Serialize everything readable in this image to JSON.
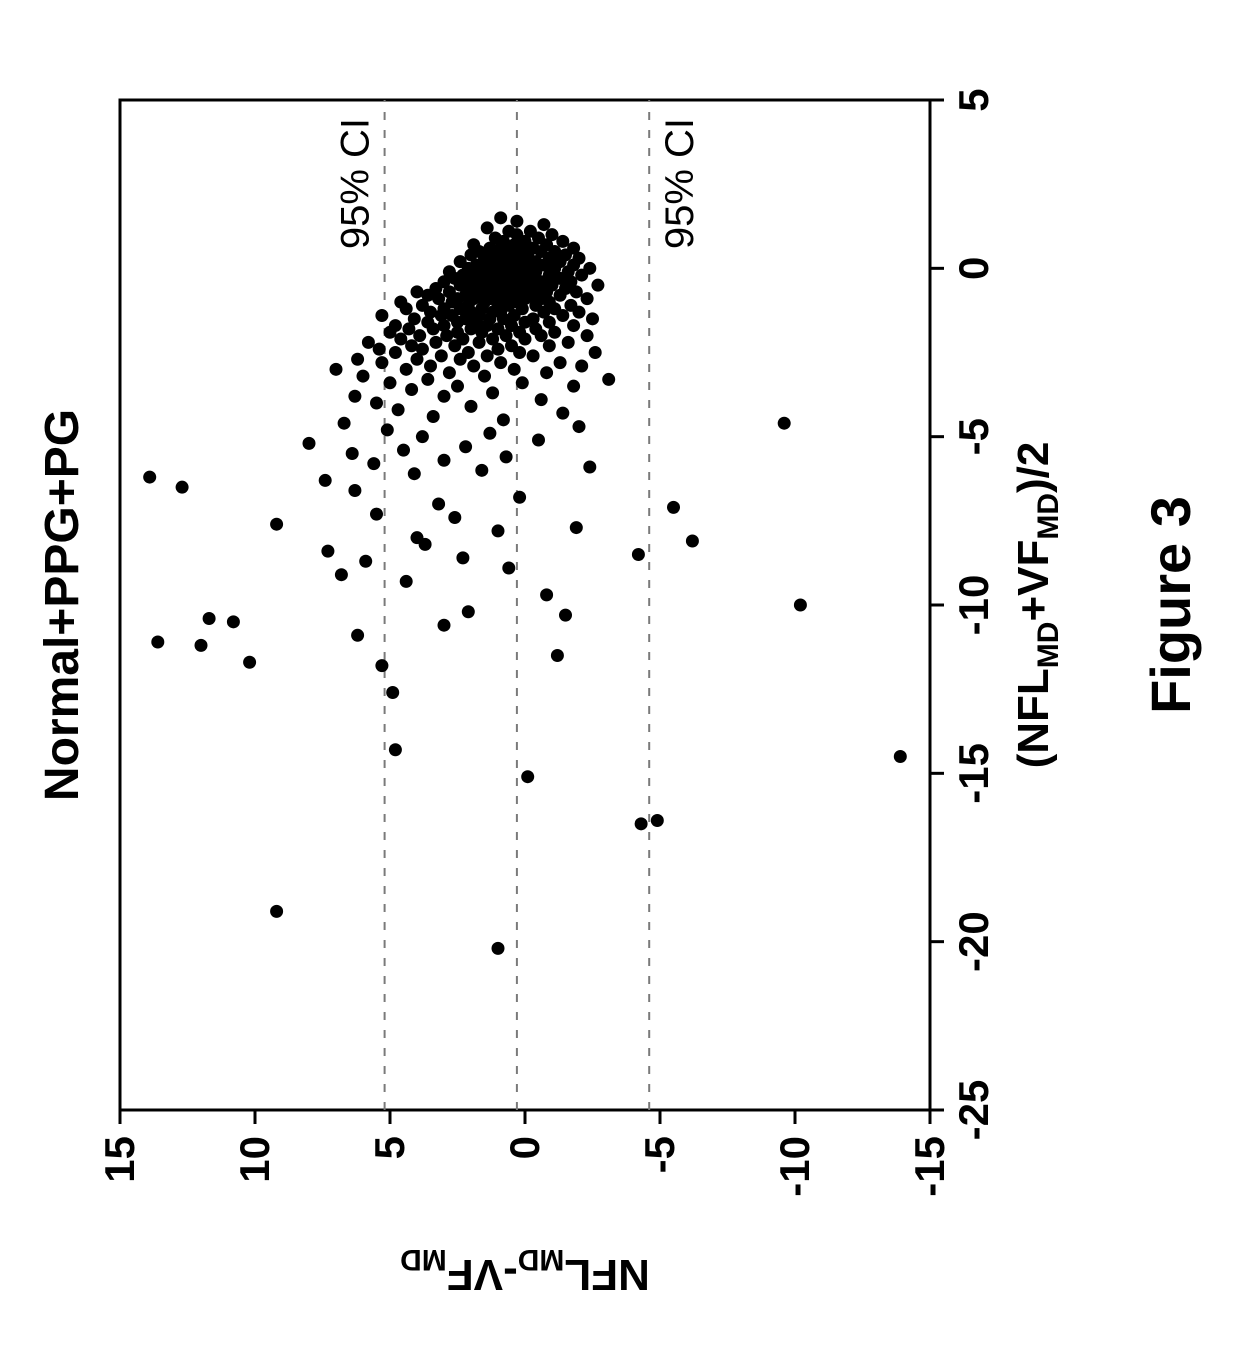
{
  "figure": {
    "caption": "Figure 3",
    "caption_fontsize": 56
  },
  "chart": {
    "type": "scatter",
    "title": "Normal+PPG+PG",
    "title_fontsize": 48,
    "background_color": "#ffffff",
    "axis_color": "#000000",
    "axis_line_width": 3,
    "tick_color": "#000000",
    "tick_len": 14,
    "tick_fontsize": 42,
    "tick_fontweight": "bold",
    "x": {
      "label_main": "(NFL",
      "label_sub1": "MD",
      "label_mid": "+VF",
      "label_sub2": "MD",
      "label_tail": ")/2",
      "min": -25,
      "max": 5,
      "ticks": [
        -25,
        -20,
        -15,
        -10,
        -5,
        0,
        5
      ]
    },
    "y": {
      "label_main": "NFL",
      "label_sub1": "MD",
      "label_mid": "-VF",
      "label_sub2": "MD",
      "min": -15,
      "max": 15,
      "ticks": [
        -15,
        -10,
        -5,
        0,
        5,
        10,
        15
      ]
    },
    "ref_lines": {
      "color": "#7a7a7a",
      "width": 2,
      "dash": "8 10",
      "mean": 0.3,
      "upper": 5.2,
      "lower": -4.6,
      "label_upper": "95% CI",
      "label_lower": "95% CI"
    },
    "marker": {
      "radius": 6.5,
      "fill": "#000000",
      "opacity": 1
    },
    "points": [
      [
        -19.1,
        9.2
      ],
      [
        -20.2,
        1.0
      ],
      [
        -16.5,
        -4.3
      ],
      [
        -16.4,
        -4.9
      ],
      [
        -15.1,
        -0.1
      ],
      [
        -14.5,
        -13.9
      ],
      [
        -14.3,
        4.8
      ],
      [
        -12.6,
        4.9
      ],
      [
        -11.8,
        5.3
      ],
      [
        -11.7,
        10.2
      ],
      [
        -11.5,
        -1.2
      ],
      [
        -11.2,
        12.0
      ],
      [
        -11.1,
        13.6
      ],
      [
        -10.9,
        6.2
      ],
      [
        -10.6,
        3.0
      ],
      [
        -10.5,
        10.8
      ],
      [
        -10.4,
        11.7
      ],
      [
        -10.3,
        -1.5
      ],
      [
        -10.2,
        2.1
      ],
      [
        -10.0,
        -10.2
      ],
      [
        -9.7,
        -0.8
      ],
      [
        -9.3,
        4.4
      ],
      [
        -9.1,
        6.8
      ],
      [
        -8.9,
        0.6
      ],
      [
        -8.7,
        5.9
      ],
      [
        -8.6,
        2.3
      ],
      [
        -8.5,
        -4.2
      ],
      [
        -8.4,
        7.3
      ],
      [
        -8.2,
        3.7
      ],
      [
        -8.1,
        -6.2
      ],
      [
        -8.0,
        4.0
      ],
      [
        -7.8,
        1.0
      ],
      [
        -7.7,
        -1.9
      ],
      [
        -7.6,
        9.2
      ],
      [
        -7.4,
        2.6
      ],
      [
        -7.3,
        5.5
      ],
      [
        -7.1,
        -5.5
      ],
      [
        -7.0,
        3.2
      ],
      [
        -6.8,
        0.2
      ],
      [
        -6.6,
        6.3
      ],
      [
        -6.5,
        12.7
      ],
      [
        -6.3,
        7.4
      ],
      [
        -6.2,
        13.9
      ],
      [
        -6.1,
        4.1
      ],
      [
        -6.0,
        1.6
      ],
      [
        -5.9,
        -2.4
      ],
      [
        -5.8,
        5.6
      ],
      [
        -5.7,
        3.0
      ],
      [
        -5.6,
        0.7
      ],
      [
        -5.5,
        6.4
      ],
      [
        -5.4,
        4.5
      ],
      [
        -5.3,
        2.2
      ],
      [
        -5.2,
        8.0
      ],
      [
        -5.1,
        -0.5
      ],
      [
        -5.0,
        3.8
      ],
      [
        -4.9,
        1.3
      ],
      [
        -4.8,
        5.1
      ],
      [
        -4.7,
        -2.0
      ],
      [
        -4.6,
        6.7
      ],
      [
        -4.6,
        -9.6
      ],
      [
        -4.5,
        0.8
      ],
      [
        -4.4,
        3.4
      ],
      [
        -4.3,
        -1.4
      ],
      [
        -4.2,
        4.7
      ],
      [
        -4.1,
        2.0
      ],
      [
        -4.0,
        5.5
      ],
      [
        -3.9,
        -0.6
      ],
      [
        -3.8,
        3.0
      ],
      [
        -3.8,
        6.3
      ],
      [
        -3.7,
        1.2
      ],
      [
        -3.6,
        4.2
      ],
      [
        -3.5,
        -1.8
      ],
      [
        -3.5,
        2.5
      ],
      [
        -3.4,
        0.1
      ],
      [
        -3.4,
        5.0
      ],
      [
        -3.3,
        -3.1
      ],
      [
        -3.3,
        3.6
      ],
      [
        -3.2,
        1.5
      ],
      [
        -3.2,
        6.0
      ],
      [
        -3.1,
        -0.8
      ],
      [
        -3.1,
        2.8
      ],
      [
        -3.0,
        4.4
      ],
      [
        -3.0,
        0.4
      ],
      [
        -3.0,
        7.0
      ],
      [
        -2.9,
        -2.1
      ],
      [
        -2.9,
        1.9
      ],
      [
        -2.9,
        3.5
      ],
      [
        -2.8,
        5.3
      ],
      [
        -2.8,
        0.9
      ],
      [
        -2.8,
        -1.3
      ],
      [
        -2.7,
        2.4
      ],
      [
        -2.7,
        4.0
      ],
      [
        -2.7,
        6.2
      ],
      [
        -2.6,
        -0.3
      ],
      [
        -2.6,
        1.4
      ],
      [
        -2.6,
        3.1
      ],
      [
        -2.5,
        4.8
      ],
      [
        -2.5,
        0.2
      ],
      [
        -2.5,
        2.1
      ],
      [
        -2.5,
        -2.6
      ],
      [
        -2.4,
        3.8
      ],
      [
        -2.4,
        1.0
      ],
      [
        -2.4,
        5.4
      ],
      [
        -2.3,
        -0.9
      ],
      [
        -2.3,
        2.6
      ],
      [
        -2.3,
        0.5
      ],
      [
        -2.3,
        4.2
      ],
      [
        -2.2,
        1.7
      ],
      [
        -2.2,
        3.3
      ],
      [
        -2.2,
        -1.6
      ],
      [
        -2.2,
        5.8
      ],
      [
        -2.1,
        0.0
      ],
      [
        -2.1,
        2.3
      ],
      [
        -2.1,
        4.6
      ],
      [
        -2.1,
        1.2
      ],
      [
        -2.0,
        -0.6
      ],
      [
        -2.0,
        2.9
      ],
      [
        -2.0,
        0.7
      ],
      [
        -2.0,
        3.9
      ],
      [
        -2.0,
        -2.3
      ],
      [
        -1.9,
        1.6
      ],
      [
        -1.9,
        5.0
      ],
      [
        -1.9,
        0.2
      ],
      [
        -1.9,
        2.5
      ],
      [
        -1.9,
        -1.1
      ],
      [
        -1.8,
        3.4
      ],
      [
        -1.8,
        1.0
      ],
      [
        -1.8,
        4.3
      ],
      [
        -1.8,
        -0.4
      ],
      [
        -1.8,
        2.0
      ],
      [
        -1.7,
        0.5
      ],
      [
        -1.7,
        3.0
      ],
      [
        -1.7,
        -1.8
      ],
      [
        -1.7,
        1.4
      ],
      [
        -1.7,
        4.8
      ],
      [
        -1.6,
        2.5
      ],
      [
        -1.6,
        0.0
      ],
      [
        -1.6,
        -0.9
      ],
      [
        -1.6,
        3.6
      ],
      [
        -1.6,
        1.8
      ],
      [
        -1.5,
        -2.5
      ],
      [
        -1.5,
        0.8
      ],
      [
        -1.5,
        2.2
      ],
      [
        -1.5,
        4.1
      ],
      [
        -1.5,
        -0.3
      ],
      [
        -1.5,
        1.3
      ],
      [
        -1.4,
        3.1
      ],
      [
        -1.4,
        0.4
      ],
      [
        -1.4,
        -1.4
      ],
      [
        -1.4,
        2.7
      ],
      [
        -1.4,
        1.7
      ],
      [
        -1.4,
        5.3
      ],
      [
        -1.3,
        -0.7
      ],
      [
        -1.3,
        0.9
      ],
      [
        -1.3,
        2.0
      ],
      [
        -1.3,
        3.5
      ],
      [
        -1.3,
        -2.0
      ],
      [
        -1.3,
        1.2
      ],
      [
        -1.2,
        0.1
      ],
      [
        -1.2,
        2.4
      ],
      [
        -1.2,
        4.4
      ],
      [
        -1.2,
        -1.1
      ],
      [
        -1.2,
        1.6
      ],
      [
        -1.2,
        3.0
      ],
      [
        -1.1,
        0.6
      ],
      [
        -1.1,
        -0.4
      ],
      [
        -1.1,
        2.1
      ],
      [
        -1.1,
        1.0
      ],
      [
        -1.1,
        3.8
      ],
      [
        -1.1,
        -1.7
      ],
      [
        -1.0,
        0.3
      ],
      [
        -1.0,
        1.5
      ],
      [
        -1.0,
        2.7
      ],
      [
        -1.0,
        -0.9
      ],
      [
        -1.0,
        4.6
      ],
      [
        -1.0,
        0.8
      ],
      [
        -0.9,
        -2.3
      ],
      [
        -0.9,
        1.9
      ],
      [
        -0.9,
        0.0
      ],
      [
        -0.9,
        3.2
      ],
      [
        -0.9,
        -0.6
      ],
      [
        -0.9,
        1.3
      ],
      [
        -0.9,
        2.5
      ],
      [
        -0.8,
        0.5
      ],
      [
        -0.8,
        -1.3
      ],
      [
        -0.8,
        1.7
      ],
      [
        -0.8,
        3.6
      ],
      [
        -0.8,
        -0.2
      ],
      [
        -0.8,
        2.2
      ],
      [
        -0.8,
        0.9
      ],
      [
        -0.7,
        -1.9
      ],
      [
        -0.7,
        1.1
      ],
      [
        -0.7,
        2.8
      ],
      [
        -0.7,
        0.2
      ],
      [
        -0.7,
        -0.8
      ],
      [
        -0.7,
        1.5
      ],
      [
        -0.7,
        4.0
      ],
      [
        -0.6,
        0.6
      ],
      [
        -0.6,
        2.0
      ],
      [
        -0.6,
        -1.5
      ],
      [
        -0.6,
        1.0
      ],
      [
        -0.6,
        3.3
      ],
      [
        -0.6,
        -0.4
      ],
      [
        -0.6,
        0.3
      ],
      [
        -0.5,
        1.8
      ],
      [
        -0.5,
        -2.7
      ],
      [
        -0.5,
        0.8
      ],
      [
        -0.5,
        2.4
      ],
      [
        -0.5,
        -1.0
      ],
      [
        -0.5,
        1.3
      ],
      [
        -0.5,
        -0.1
      ],
      [
        -0.4,
        0.5
      ],
      [
        -0.4,
        2.1
      ],
      [
        -0.4,
        -1.7
      ],
      [
        -0.4,
        1.6
      ],
      [
        -0.4,
        0.0
      ],
      [
        -0.4,
        3.0
      ],
      [
        -0.4,
        -0.6
      ],
      [
        -0.4,
        0.9
      ],
      [
        -0.3,
        1.2
      ],
      [
        -0.3,
        -1.3
      ],
      [
        -0.3,
        2.6
      ],
      [
        -0.3,
        0.3
      ],
      [
        -0.3,
        -0.3
      ],
      [
        -0.3,
        1.8
      ],
      [
        -0.3,
        0.7
      ],
      [
        -0.2,
        -2.1
      ],
      [
        -0.2,
        1.0
      ],
      [
        -0.2,
        0.1
      ],
      [
        -0.2,
        2.3
      ],
      [
        -0.2,
        -0.9
      ],
      [
        -0.2,
        1.5
      ],
      [
        -0.2,
        0.5
      ],
      [
        -0.1,
        -1.6
      ],
      [
        -0.1,
        0.8
      ],
      [
        -0.1,
        1.9
      ],
      [
        -0.1,
        -0.4
      ],
      [
        -0.1,
        0.2
      ],
      [
        -0.1,
        1.2
      ],
      [
        -0.1,
        2.8
      ],
      [
        0.0,
        -1.1
      ],
      [
        0.0,
        0.6
      ],
      [
        0.0,
        1.6
      ],
      [
        0.0,
        -0.2
      ],
      [
        0.0,
        0.9
      ],
      [
        0.0,
        -2.4
      ],
      [
        0.0,
        2.1
      ],
      [
        0.1,
        0.3
      ],
      [
        0.1,
        -0.7
      ],
      [
        0.1,
        1.3
      ],
      [
        0.1,
        0.0
      ],
      [
        0.1,
        -1.8
      ],
      [
        0.1,
        1.8
      ],
      [
        0.2,
        0.7
      ],
      [
        0.2,
        -1.3
      ],
      [
        0.2,
        1.0
      ],
      [
        0.2,
        -0.4
      ],
      [
        0.2,
        2.4
      ],
      [
        0.2,
        0.2
      ],
      [
        0.3,
        -0.9
      ],
      [
        0.3,
        1.5
      ],
      [
        0.3,
        0.5
      ],
      [
        0.3,
        -2.0
      ],
      [
        0.3,
        0.9
      ],
      [
        0.4,
        -0.1
      ],
      [
        0.4,
        1.2
      ],
      [
        0.4,
        -1.5
      ],
      [
        0.4,
        0.3
      ],
      [
        0.4,
        2.0
      ],
      [
        0.5,
        -0.6
      ],
      [
        0.5,
        0.7
      ],
      [
        0.5,
        1.7
      ],
      [
        0.5,
        -1.1
      ],
      [
        0.5,
        0.1
      ],
      [
        0.6,
        0.9
      ],
      [
        0.6,
        -0.3
      ],
      [
        0.6,
        -1.8
      ],
      [
        0.6,
        1.3
      ],
      [
        0.7,
        0.4
      ],
      [
        0.7,
        -0.8
      ],
      [
        0.7,
        1.9
      ],
      [
        0.8,
        0.0
      ],
      [
        0.8,
        -1.4
      ],
      [
        0.8,
        0.8
      ],
      [
        0.9,
        -0.5
      ],
      [
        0.9,
        1.1
      ],
      [
        1.0,
        0.3
      ],
      [
        1.0,
        -1.0
      ],
      [
        1.1,
        0.6
      ],
      [
        1.1,
        -0.2
      ],
      [
        1.2,
        1.4
      ],
      [
        1.3,
        -0.7
      ],
      [
        1.4,
        0.3
      ],
      [
        1.5,
        0.9
      ]
    ]
  }
}
